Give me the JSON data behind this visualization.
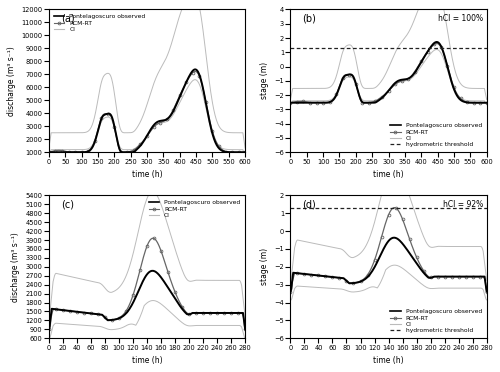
{
  "panel_a": {
    "title": "(a)",
    "xlabel": "time (h)",
    "ylabel": "discharge (m³ s⁻¹)",
    "xlim": [
      0,
      600
    ],
    "ylim": [
      1000,
      12000
    ],
    "yticks": [
      1000,
      2000,
      3000,
      4000,
      5000,
      6000,
      7000,
      8000,
      9000,
      10000,
      11000,
      12000
    ],
    "xticks": [
      0,
      50,
      100,
      150,
      200,
      250,
      300,
      350,
      400,
      450,
      500,
      550,
      600
    ]
  },
  "panel_b": {
    "title": "(b)",
    "xlabel": "time (h)",
    "ylabel": "stage (m)",
    "xlim": [
      0,
      600
    ],
    "ylim": [
      -6.0,
      4.0
    ],
    "yticks": [
      -6,
      -5,
      -4,
      -3,
      -2,
      -1,
      0,
      1,
      2,
      3,
      4
    ],
    "xticks": [
      0,
      50,
      100,
      150,
      200,
      250,
      300,
      350,
      400,
      450,
      500,
      550,
      600
    ],
    "hci_label": "hCI = 100%",
    "threshold": 1.3
  },
  "panel_c": {
    "title": "(c)",
    "xlabel": "time (h)",
    "ylabel": "discharge (m³ s⁻¹)",
    "xlim": [
      0,
      280
    ],
    "ylim": [
      600,
      5400
    ],
    "yticks": [
      600,
      900,
      1200,
      1500,
      1800,
      2100,
      2400,
      2700,
      3000,
      3300,
      3600,
      3900,
      4200,
      4500,
      4800,
      5100,
      5400
    ],
    "xticks": [
      0,
      20,
      40,
      60,
      80,
      100,
      120,
      140,
      160,
      180,
      200,
      220,
      240,
      260,
      280
    ]
  },
  "panel_d": {
    "title": "(d)",
    "xlabel": "time (h)",
    "ylabel": "stage (m)",
    "xlim": [
      0,
      280
    ],
    "ylim": [
      -6.0,
      2.0
    ],
    "yticks": [
      -6,
      -5,
      -4,
      -3,
      -2,
      -1,
      0,
      1,
      2
    ],
    "xticks": [
      0,
      20,
      40,
      60,
      80,
      100,
      120,
      140,
      160,
      180,
      200,
      220,
      240,
      260,
      280
    ],
    "hci_label": "hCI = 92%",
    "threshold": 1.3
  },
  "colors": {
    "observed": "#000000",
    "rcmrt": "#666666",
    "ci": "#bbbbbb",
    "threshold": "#222222"
  },
  "legend_a": [
    "Pontelagoscuro observed",
    "RCM-RT",
    "CI"
  ],
  "legend_b": [
    "Pontelagoscuro observed",
    "RCM-RT",
    "CI",
    "hydrometric threshold"
  ],
  "legend_c": [
    "Pontelagoscuro observed",
    "RCM-RT",
    "CI"
  ],
  "legend_d": [
    "Pontelagoscuro observed",
    "RCM-RT",
    "CI",
    "hydrometric threshold"
  ]
}
